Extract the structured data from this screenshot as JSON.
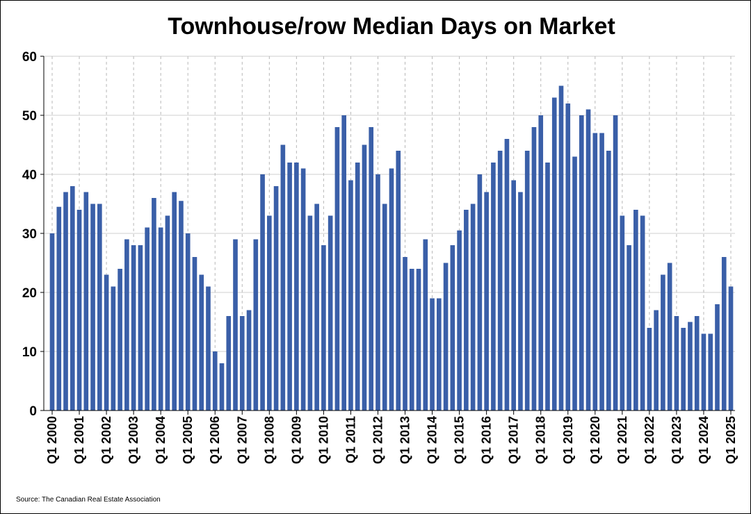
{
  "chart_data": {
    "type": "bar",
    "title": "Townhouse/row Median Days on Market",
    "source": "Source: The Canadian Real Estate Association",
    "xlabel": "",
    "ylabel": "",
    "ylim": [
      0,
      60
    ],
    "yticks": [
      0,
      10,
      20,
      30,
      40,
      50,
      60
    ],
    "grid": "on",
    "tick_labels": [
      "Q1 2000",
      "Q1 2001",
      "Q1 2002",
      "Q1 2003",
      "Q1 2004",
      "Q1 2005",
      "Q1 2006",
      "Q1 2007",
      "Q1 2008",
      "Q1 2009",
      "Q1 2010",
      "Q1 2011",
      "Q1 2012",
      "Q1 2013",
      "Q1 2014",
      "Q1 2015",
      "Q1 2016",
      "Q1 2017",
      "Q1 2018",
      "Q1 2019",
      "Q1 2020",
      "Q1 2021",
      "Q1 2022",
      "Q1 2023",
      "Q1 2024",
      "Q1 2025"
    ],
    "series": [
      {
        "color": "#3a5fa8",
        "values": [
          30,
          34.5,
          37,
          38,
          34,
          37,
          35,
          35,
          23,
          21,
          24,
          29,
          28,
          28,
          31,
          36,
          31,
          33,
          37,
          35.5,
          30,
          26,
          23,
          21,
          10,
          8,
          16,
          29,
          16,
          17,
          29,
          40,
          33,
          38,
          45,
          42,
          42,
          41,
          33,
          35,
          28,
          33,
          48,
          50,
          39,
          42,
          45,
          48,
          40,
          35,
          41,
          44,
          26,
          24,
          24,
          29,
          19,
          19,
          25,
          28,
          30.5,
          34,
          35,
          40,
          37,
          42,
          44,
          46,
          39,
          37,
          44,
          48,
          50,
          42,
          53,
          55,
          52,
          43,
          50,
          51,
          47,
          47,
          44,
          50,
          33,
          28,
          34,
          33,
          14,
          17,
          23,
          25,
          16,
          14,
          15,
          16,
          13,
          13,
          18,
          26,
          21
        ]
      }
    ]
  }
}
